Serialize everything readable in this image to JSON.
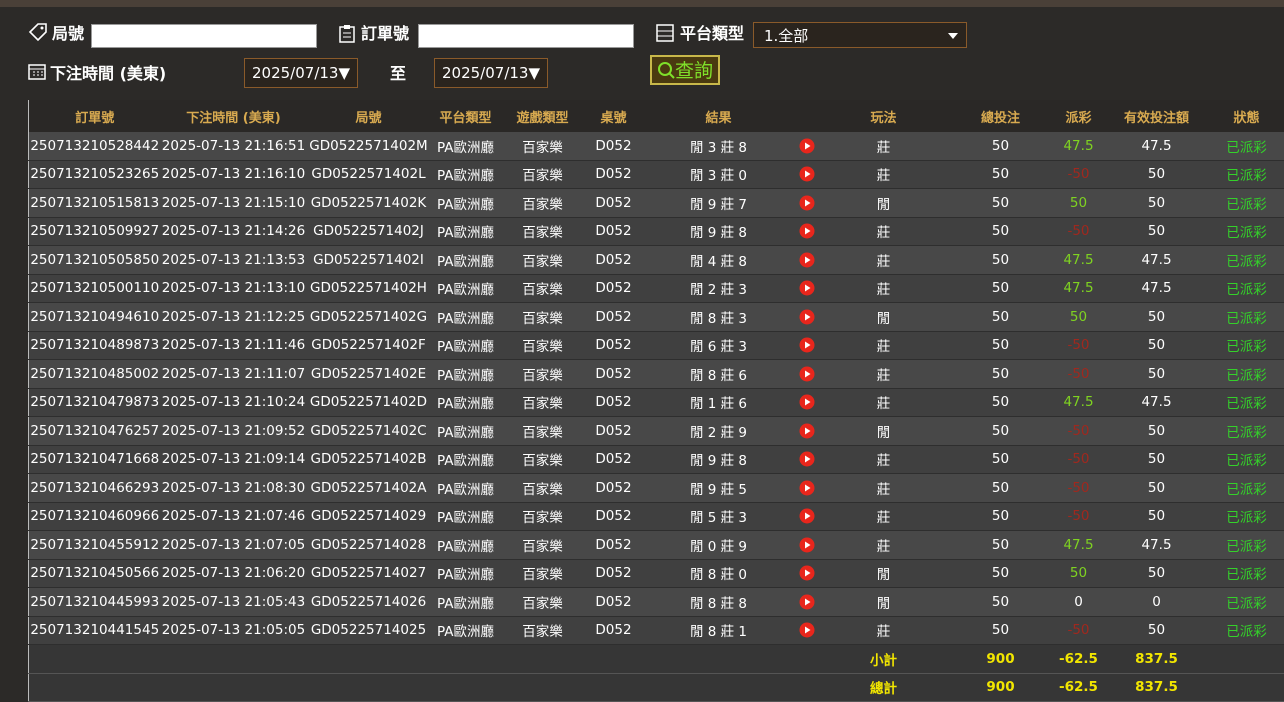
{
  "filters": {
    "round_label": "局號",
    "order_label": "訂單號",
    "platform_label": "平台類型",
    "platform_value": "1.全部",
    "time_label": "下注時間 (美東)",
    "date_from": "2025/07/13▼",
    "to_label": "至",
    "date_to": "2025/07/13▼",
    "search_button": "查詢"
  },
  "table": {
    "headers": [
      "訂單號",
      "下注時間 (美東)",
      "局號",
      "平台類型",
      "遊戲類型",
      "桌號",
      "結果",
      "玩法",
      "總投注",
      "派彩",
      "有效投注額",
      "狀態"
    ],
    "rows": [
      [
        "250713210528442",
        "2025-07-13 21:16:51",
        "GD0522571402M",
        "PA歐洲廳",
        "百家樂",
        "D052",
        "閒 3 莊 8",
        "莊",
        "50",
        "47.5",
        "47.5",
        "已派彩"
      ],
      [
        "250713210523265",
        "2025-07-13 21:16:10",
        "GD0522571402L",
        "PA歐洲廳",
        "百家樂",
        "D052",
        "閒 3 莊 0",
        "莊",
        "50",
        "-50",
        "50",
        "已派彩"
      ],
      [
        "250713210515813",
        "2025-07-13 21:15:10",
        "GD0522571402K",
        "PA歐洲廳",
        "百家樂",
        "D052",
        "閒 9 莊 7",
        "閒",
        "50",
        "50",
        "50",
        "已派彩"
      ],
      [
        "250713210509927",
        "2025-07-13 21:14:26",
        "GD0522571402J",
        "PA歐洲廳",
        "百家樂",
        "D052",
        "閒 9 莊 8",
        "莊",
        "50",
        "-50",
        "50",
        "已派彩"
      ],
      [
        "250713210505850",
        "2025-07-13 21:13:53",
        "GD0522571402I",
        "PA歐洲廳",
        "百家樂",
        "D052",
        "閒 4 莊 8",
        "莊",
        "50",
        "47.5",
        "47.5",
        "已派彩"
      ],
      [
        "250713210500110",
        "2025-07-13 21:13:10",
        "GD0522571402H",
        "PA歐洲廳",
        "百家樂",
        "D052",
        "閒 2 莊 3",
        "莊",
        "50",
        "47.5",
        "47.5",
        "已派彩"
      ],
      [
        "250713210494610",
        "2025-07-13 21:12:25",
        "GD0522571402G",
        "PA歐洲廳",
        "百家樂",
        "D052",
        "閒 8 莊 3",
        "閒",
        "50",
        "50",
        "50",
        "已派彩"
      ],
      [
        "250713210489873",
        "2025-07-13 21:11:46",
        "GD0522571402F",
        "PA歐洲廳",
        "百家樂",
        "D052",
        "閒 6 莊 3",
        "莊",
        "50",
        "-50",
        "50",
        "已派彩"
      ],
      [
        "250713210485002",
        "2025-07-13 21:11:07",
        "GD0522571402E",
        "PA歐洲廳",
        "百家樂",
        "D052",
        "閒 8 莊 6",
        "莊",
        "50",
        "-50",
        "50",
        "已派彩"
      ],
      [
        "250713210479873",
        "2025-07-13 21:10:24",
        "GD0522571402D",
        "PA歐洲廳",
        "百家樂",
        "D052",
        "閒 1 莊 6",
        "莊",
        "50",
        "47.5",
        "47.5",
        "已派彩"
      ],
      [
        "250713210476257",
        "2025-07-13 21:09:52",
        "GD0522571402C",
        "PA歐洲廳",
        "百家樂",
        "D052",
        "閒 2 莊 9",
        "閒",
        "50",
        "-50",
        "50",
        "已派彩"
      ],
      [
        "250713210471668",
        "2025-07-13 21:09:14",
        "GD0522571402B",
        "PA歐洲廳",
        "百家樂",
        "D052",
        "閒 9 莊 8",
        "莊",
        "50",
        "-50",
        "50",
        "已派彩"
      ],
      [
        "250713210466293",
        "2025-07-13 21:08:30",
        "GD0522571402A",
        "PA歐洲廳",
        "百家樂",
        "D052",
        "閒 9 莊 5",
        "莊",
        "50",
        "-50",
        "50",
        "已派彩"
      ],
      [
        "250713210460966",
        "2025-07-13 21:07:46",
        "GD05225714029",
        "PA歐洲廳",
        "百家樂",
        "D052",
        "閒 5 莊 3",
        "莊",
        "50",
        "-50",
        "50",
        "已派彩"
      ],
      [
        "250713210455912",
        "2025-07-13 21:07:05",
        "GD05225714028",
        "PA歐洲廳",
        "百家樂",
        "D052",
        "閒 0 莊 9",
        "莊",
        "50",
        "47.5",
        "47.5",
        "已派彩"
      ],
      [
        "250713210450566",
        "2025-07-13 21:06:20",
        "GD05225714027",
        "PA歐洲廳",
        "百家樂",
        "D052",
        "閒 8 莊 0",
        "閒",
        "50",
        "50",
        "50",
        "已派彩"
      ],
      [
        "250713210445993",
        "2025-07-13 21:05:43",
        "GD05225714026",
        "PA歐洲廳",
        "百家樂",
        "D052",
        "閒 8 莊 8",
        "閒",
        "50",
        "0",
        "0",
        "已派彩"
      ],
      [
        "250713210441545",
        "2025-07-13 21:05:05",
        "GD05225714025",
        "PA歐洲廳",
        "百家樂",
        "D052",
        "閒 8 莊 1",
        "莊",
        "50",
        "-50",
        "50",
        "已派彩"
      ]
    ],
    "summary": [
      {
        "label": "小計",
        "total_bet": "900",
        "payout": "-62.5",
        "valid_bet": "837.5"
      },
      {
        "label": "總計",
        "total_bet": "900",
        "payout": "-62.5",
        "valid_bet": "837.5"
      }
    ]
  }
}
